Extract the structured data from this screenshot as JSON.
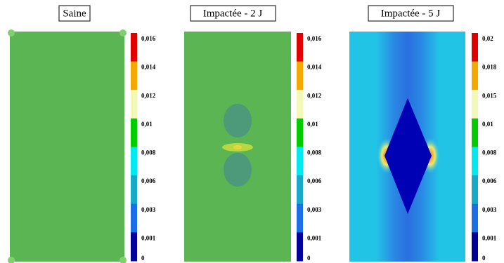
{
  "panels": [
    {
      "title": "Saine",
      "colorbar": [
        "0,016",
        "0,014",
        "0,012",
        "0,01",
        "0,008",
        "0,006",
        "0,003",
        "0,001",
        "0"
      ]
    },
    {
      "title": "Impactée - 2 J",
      "colorbar": [
        "0,016",
        "0,014",
        "0,012",
        "0,01",
        "0,008",
        "0,006",
        "0,003",
        "0,001",
        "0"
      ]
    },
    {
      "title": "Impactée - 5 J",
      "colorbar": [
        "0,02",
        "0,018",
        "0,015",
        "0,01",
        "0,008",
        "0,006",
        "0,003",
        "0,001",
        "0"
      ]
    }
  ]
}
